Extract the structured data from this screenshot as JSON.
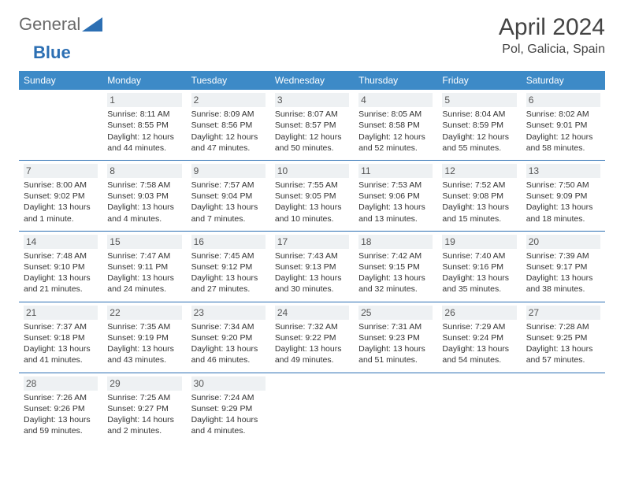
{
  "brand": {
    "part1": "General",
    "part2": "Blue"
  },
  "title": "April 2024",
  "location": "Pol, Galicia, Spain",
  "colors": {
    "header_bg": "#3d8ac7",
    "row_border": "#2c6fb3",
    "daynum_bg": "#eef1f3",
    "text": "#333333",
    "title_color": "#444444"
  },
  "weekdays": [
    "Sunday",
    "Monday",
    "Tuesday",
    "Wednesday",
    "Thursday",
    "Friday",
    "Saturday"
  ],
  "weeks": [
    [
      {
        "day": "",
        "sunrise": "",
        "sunset": "",
        "daylight1": "",
        "daylight2": ""
      },
      {
        "day": "1",
        "sunrise": "Sunrise: 8:11 AM",
        "sunset": "Sunset: 8:55 PM",
        "daylight1": "Daylight: 12 hours",
        "daylight2": "and 44 minutes."
      },
      {
        "day": "2",
        "sunrise": "Sunrise: 8:09 AM",
        "sunset": "Sunset: 8:56 PM",
        "daylight1": "Daylight: 12 hours",
        "daylight2": "and 47 minutes."
      },
      {
        "day": "3",
        "sunrise": "Sunrise: 8:07 AM",
        "sunset": "Sunset: 8:57 PM",
        "daylight1": "Daylight: 12 hours",
        "daylight2": "and 50 minutes."
      },
      {
        "day": "4",
        "sunrise": "Sunrise: 8:05 AM",
        "sunset": "Sunset: 8:58 PM",
        "daylight1": "Daylight: 12 hours",
        "daylight2": "and 52 minutes."
      },
      {
        "day": "5",
        "sunrise": "Sunrise: 8:04 AM",
        "sunset": "Sunset: 8:59 PM",
        "daylight1": "Daylight: 12 hours",
        "daylight2": "and 55 minutes."
      },
      {
        "day": "6",
        "sunrise": "Sunrise: 8:02 AM",
        "sunset": "Sunset: 9:01 PM",
        "daylight1": "Daylight: 12 hours",
        "daylight2": "and 58 minutes."
      }
    ],
    [
      {
        "day": "7",
        "sunrise": "Sunrise: 8:00 AM",
        "sunset": "Sunset: 9:02 PM",
        "daylight1": "Daylight: 13 hours",
        "daylight2": "and 1 minute."
      },
      {
        "day": "8",
        "sunrise": "Sunrise: 7:58 AM",
        "sunset": "Sunset: 9:03 PM",
        "daylight1": "Daylight: 13 hours",
        "daylight2": "and 4 minutes."
      },
      {
        "day": "9",
        "sunrise": "Sunrise: 7:57 AM",
        "sunset": "Sunset: 9:04 PM",
        "daylight1": "Daylight: 13 hours",
        "daylight2": "and 7 minutes."
      },
      {
        "day": "10",
        "sunrise": "Sunrise: 7:55 AM",
        "sunset": "Sunset: 9:05 PM",
        "daylight1": "Daylight: 13 hours",
        "daylight2": "and 10 minutes."
      },
      {
        "day": "11",
        "sunrise": "Sunrise: 7:53 AM",
        "sunset": "Sunset: 9:06 PM",
        "daylight1": "Daylight: 13 hours",
        "daylight2": "and 13 minutes."
      },
      {
        "day": "12",
        "sunrise": "Sunrise: 7:52 AM",
        "sunset": "Sunset: 9:08 PM",
        "daylight1": "Daylight: 13 hours",
        "daylight2": "and 15 minutes."
      },
      {
        "day": "13",
        "sunrise": "Sunrise: 7:50 AM",
        "sunset": "Sunset: 9:09 PM",
        "daylight1": "Daylight: 13 hours",
        "daylight2": "and 18 minutes."
      }
    ],
    [
      {
        "day": "14",
        "sunrise": "Sunrise: 7:48 AM",
        "sunset": "Sunset: 9:10 PM",
        "daylight1": "Daylight: 13 hours",
        "daylight2": "and 21 minutes."
      },
      {
        "day": "15",
        "sunrise": "Sunrise: 7:47 AM",
        "sunset": "Sunset: 9:11 PM",
        "daylight1": "Daylight: 13 hours",
        "daylight2": "and 24 minutes."
      },
      {
        "day": "16",
        "sunrise": "Sunrise: 7:45 AM",
        "sunset": "Sunset: 9:12 PM",
        "daylight1": "Daylight: 13 hours",
        "daylight2": "and 27 minutes."
      },
      {
        "day": "17",
        "sunrise": "Sunrise: 7:43 AM",
        "sunset": "Sunset: 9:13 PM",
        "daylight1": "Daylight: 13 hours",
        "daylight2": "and 30 minutes."
      },
      {
        "day": "18",
        "sunrise": "Sunrise: 7:42 AM",
        "sunset": "Sunset: 9:15 PM",
        "daylight1": "Daylight: 13 hours",
        "daylight2": "and 32 minutes."
      },
      {
        "day": "19",
        "sunrise": "Sunrise: 7:40 AM",
        "sunset": "Sunset: 9:16 PM",
        "daylight1": "Daylight: 13 hours",
        "daylight2": "and 35 minutes."
      },
      {
        "day": "20",
        "sunrise": "Sunrise: 7:39 AM",
        "sunset": "Sunset: 9:17 PM",
        "daylight1": "Daylight: 13 hours",
        "daylight2": "and 38 minutes."
      }
    ],
    [
      {
        "day": "21",
        "sunrise": "Sunrise: 7:37 AM",
        "sunset": "Sunset: 9:18 PM",
        "daylight1": "Daylight: 13 hours",
        "daylight2": "and 41 minutes."
      },
      {
        "day": "22",
        "sunrise": "Sunrise: 7:35 AM",
        "sunset": "Sunset: 9:19 PM",
        "daylight1": "Daylight: 13 hours",
        "daylight2": "and 43 minutes."
      },
      {
        "day": "23",
        "sunrise": "Sunrise: 7:34 AM",
        "sunset": "Sunset: 9:20 PM",
        "daylight1": "Daylight: 13 hours",
        "daylight2": "and 46 minutes."
      },
      {
        "day": "24",
        "sunrise": "Sunrise: 7:32 AM",
        "sunset": "Sunset: 9:22 PM",
        "daylight1": "Daylight: 13 hours",
        "daylight2": "and 49 minutes."
      },
      {
        "day": "25",
        "sunrise": "Sunrise: 7:31 AM",
        "sunset": "Sunset: 9:23 PM",
        "daylight1": "Daylight: 13 hours",
        "daylight2": "and 51 minutes."
      },
      {
        "day": "26",
        "sunrise": "Sunrise: 7:29 AM",
        "sunset": "Sunset: 9:24 PM",
        "daylight1": "Daylight: 13 hours",
        "daylight2": "and 54 minutes."
      },
      {
        "day": "27",
        "sunrise": "Sunrise: 7:28 AM",
        "sunset": "Sunset: 9:25 PM",
        "daylight1": "Daylight: 13 hours",
        "daylight2": "and 57 minutes."
      }
    ],
    [
      {
        "day": "28",
        "sunrise": "Sunrise: 7:26 AM",
        "sunset": "Sunset: 9:26 PM",
        "daylight1": "Daylight: 13 hours",
        "daylight2": "and 59 minutes."
      },
      {
        "day": "29",
        "sunrise": "Sunrise: 7:25 AM",
        "sunset": "Sunset: 9:27 PM",
        "daylight1": "Daylight: 14 hours",
        "daylight2": "and 2 minutes."
      },
      {
        "day": "30",
        "sunrise": "Sunrise: 7:24 AM",
        "sunset": "Sunset: 9:29 PM",
        "daylight1": "Daylight: 14 hours",
        "daylight2": "and 4 minutes."
      },
      {
        "day": "",
        "sunrise": "",
        "sunset": "",
        "daylight1": "",
        "daylight2": ""
      },
      {
        "day": "",
        "sunrise": "",
        "sunset": "",
        "daylight1": "",
        "daylight2": ""
      },
      {
        "day": "",
        "sunrise": "",
        "sunset": "",
        "daylight1": "",
        "daylight2": ""
      },
      {
        "day": "",
        "sunrise": "",
        "sunset": "",
        "daylight1": "",
        "daylight2": ""
      }
    ]
  ]
}
